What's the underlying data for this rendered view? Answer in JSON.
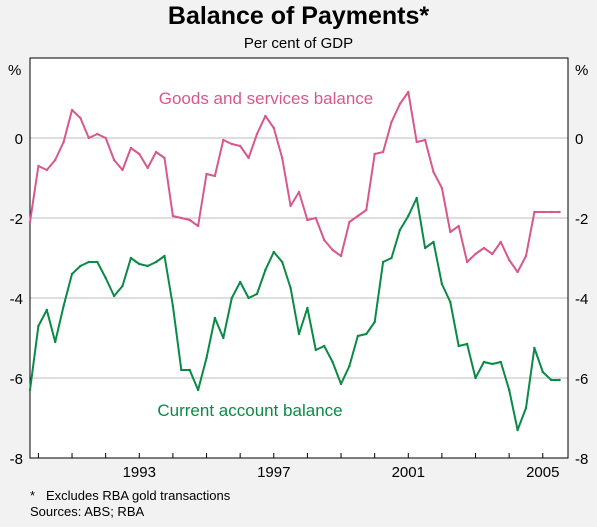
{
  "title": "Balance of Payments*",
  "subtitle": "Per cent of GDP",
  "y_unit_left": "%",
  "y_unit_right": "%",
  "footnote_mark": "*",
  "footnote": "Excludes RBA gold transactions",
  "sources": "Sources: ABS; RBA",
  "colors": {
    "goods": "#d6588f",
    "current": "#0a8a46",
    "background": "#f2f2f2",
    "plot_background": "#ffffff",
    "grid": "#bcbcbc"
  },
  "chart_data": {
    "type": "line",
    "title": "Balance of Payments*",
    "subtitle": "Per cent of GDP",
    "ylim": [
      -8,
      2
    ],
    "xlim": [
      1989.75,
      2005.75
    ],
    "yticks": [
      -8,
      -6,
      -4,
      -2,
      0
    ],
    "ytick_labels": [
      "-8",
      "-6",
      "-4",
      "-2",
      "0"
    ],
    "xticks": [
      1993,
      1997,
      2001,
      2005
    ],
    "xtick_labels": [
      "1993",
      "1997",
      "2001",
      "2005"
    ],
    "grid": true,
    "series": [
      {
        "name": "Goods and services balance",
        "x": [
          1989.75,
          1990,
          1990.25,
          1990.5,
          1990.75,
          1991,
          1991.25,
          1991.5,
          1991.75,
          1992,
          1992.25,
          1992.5,
          1992.75,
          1993,
          1993.25,
          1993.5,
          1993.75,
          1994,
          1994.25,
          1994.5,
          1994.75,
          1995,
          1995.25,
          1995.5,
          1995.75,
          1996,
          1996.25,
          1996.5,
          1996.75,
          1997,
          1997.25,
          1997.5,
          1997.75,
          1998,
          1998.25,
          1998.5,
          1998.75,
          1999,
          1999.25,
          1999.5,
          1999.75,
          2000,
          2000.25,
          2000.5,
          2000.75,
          2001,
          2001.25,
          2001.5,
          2001.75,
          2002,
          2002.25,
          2002.5,
          2002.75,
          2003,
          2003.25,
          2003.5,
          2003.75,
          2004,
          2004.25,
          2004.5,
          2004.75,
          2005,
          2005.25,
          2005.5
        ],
        "y": [
          -2.1,
          -0.7,
          -0.8,
          -0.55,
          -0.1,
          0.7,
          0.5,
          0.0,
          0.1,
          0.0,
          -0.55,
          -0.8,
          -0.25,
          -0.4,
          -0.75,
          -0.35,
          -0.5,
          -1.95,
          -2.0,
          -2.05,
          -2.2,
          -0.9,
          -0.95,
          -0.05,
          -0.15,
          -0.2,
          -0.5,
          0.1,
          0.55,
          0.25,
          -0.5,
          -1.7,
          -1.35,
          -2.05,
          -2.0,
          -2.55,
          -2.8,
          -2.95,
          -2.1,
          -1.95,
          -1.8,
          -0.4,
          -0.35,
          0.4,
          0.85,
          1.15,
          -0.1,
          -0.05,
          -0.85,
          -1.25,
          -2.35,
          -2.2,
          -3.1,
          -2.9,
          -2.75,
          -2.9,
          -2.6,
          -3.05,
          -3.35,
          -2.95,
          -1.85,
          -1.85,
          -1.85,
          -1.85
        ]
      },
      {
        "name": "Current account balance",
        "x": [
          1989.75,
          1990,
          1990.25,
          1990.5,
          1990.75,
          1991,
          1991.25,
          1991.5,
          1991.75,
          1992,
          1992.25,
          1992.5,
          1992.75,
          1993,
          1993.25,
          1993.5,
          1993.75,
          1994,
          1994.25,
          1994.5,
          1994.75,
          1995,
          1995.25,
          1995.5,
          1995.75,
          1996,
          1996.25,
          1996.5,
          1996.75,
          1997,
          1997.25,
          1997.5,
          1997.75,
          1998,
          1998.25,
          1998.5,
          1998.75,
          1999,
          1999.25,
          1999.5,
          1999.75,
          2000,
          2000.25,
          2000.5,
          2000.75,
          2001,
          2001.25,
          2001.5,
          2001.75,
          2002,
          2002.25,
          2002.5,
          2002.75,
          2003,
          2003.25,
          2003.5,
          2003.75,
          2004,
          2004.25,
          2004.5,
          2004.75,
          2005,
          2005.25,
          2005.5
        ],
        "y": [
          -6.3,
          -4.7,
          -4.3,
          -5.1,
          -4.2,
          -3.4,
          -3.2,
          -3.1,
          -3.1,
          -3.5,
          -3.95,
          -3.7,
          -3.0,
          -3.15,
          -3.2,
          -3.1,
          -2.95,
          -4.2,
          -5.8,
          -5.8,
          -6.3,
          -5.5,
          -4.5,
          -5.0,
          -4.0,
          -3.6,
          -4.0,
          -3.9,
          -3.3,
          -2.85,
          -3.1,
          -3.75,
          -4.9,
          -4.25,
          -5.3,
          -5.2,
          -5.6,
          -6.15,
          -5.7,
          -4.95,
          -4.9,
          -4.6,
          -3.1,
          -3.0,
          -2.3,
          -1.95,
          -1.5,
          -2.75,
          -2.6,
          -3.65,
          -4.1,
          -5.2,
          -5.15,
          -6.0,
          -5.6,
          -5.65,
          -5.6,
          -6.3,
          -7.3,
          -6.75,
          -5.25,
          -5.85,
          -6.05,
          -6.05
        ]
      }
    ],
    "annotations": [
      {
        "text": "Goods and services balance",
        "series": 0
      },
      {
        "text": "Current account balance",
        "series": 1
      }
    ]
  }
}
